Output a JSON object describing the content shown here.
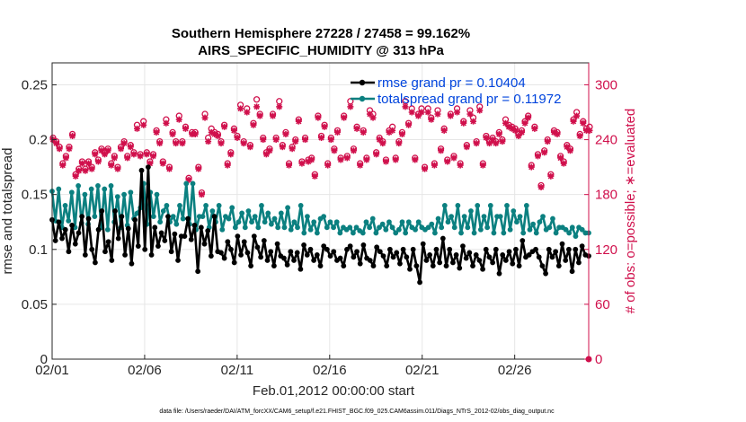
{
  "chart_data": {
    "type": "line",
    "title": "Southern Hemisphere 27228 / 27458 = 99.162%",
    "subtitle": "AIRS_SPECIFIC_HUMIDITY @ 313 hPa",
    "xlabel": "Feb.01,2012 00:00:00 start",
    "ylabel_left": "rmse and totalspread",
    "ylabel_right": "# of obs: o=possible; ∗=evaluated",
    "footnote": "data file: /Users/raeder/DAI/ATM_forcXX/CAM6_setup/f.e21.FHIST_BGC.f09_025.CAM6assim.011/Diags_NTrS_2012-02/obs_diag_output.nc",
    "x_tick_labels": [
      "02/01",
      "02/06",
      "02/11",
      "02/16",
      "02/21",
      "02/26"
    ],
    "x_tick_days": [
      0,
      5,
      10,
      15,
      20,
      25
    ],
    "xlim": [
      0,
      29
    ],
    "ylim_left": [
      0,
      0.27
    ],
    "ylim_right": [
      0,
      324
    ],
    "y_left_ticks": [
      "0",
      "0.05",
      "0.1",
      "0.15",
      "0.2",
      "0.25"
    ],
    "y_left_tick_values": [
      0,
      0.05,
      0.1,
      0.15,
      0.2,
      0.25
    ],
    "y_right_ticks": [
      "0",
      "60",
      "120",
      "180",
      "240",
      "300"
    ],
    "y_right_tick_values": [
      0,
      60,
      120,
      180,
      240,
      300
    ],
    "legend": [
      "rmse grand pr = 0.10404",
      "totalspread grand pr = 0.11972"
    ],
    "colors": {
      "rmse": "#000000",
      "spread": "#0b8080",
      "obs": "#d0104c",
      "legend_text": "#0044dd"
    },
    "series": [
      {
        "name": "rmse",
        "values": [
          0.127,
          0.108,
          0.125,
          0.11,
          0.118,
          0.098,
          0.122,
          0.105,
          0.115,
          0.13,
          0.095,
          0.128,
          0.1,
          0.088,
          0.118,
          0.135,
          0.098,
          0.107,
          0.09,
          0.135,
          0.11,
          0.13,
          0.095,
          0.119,
          0.087,
          0.127,
          0.103,
          0.172,
          0.1,
          0.175,
          0.095,
          0.12,
          0.103,
          0.115,
          0.108,
          0.13,
          0.098,
          0.114,
          0.09,
          0.112,
          0.112,
          0.128,
          0.109,
          0.122,
          0.08,
          0.12,
          0.105,
          0.117,
          0.094,
          0.13,
          0.098,
          0.097,
          0.092,
          0.107,
          0.1,
          0.088,
          0.112,
          0.095,
          0.107,
          0.097,
          0.085,
          0.112,
          0.102,
          0.093,
          0.108,
          0.09,
          0.098,
          0.085,
          0.105,
          0.094,
          0.092,
          0.086,
          0.098,
          0.09,
          0.097,
          0.082,
          0.104,
          0.095,
          0.1,
          0.09,
          0.095,
          0.085,
          0.103,
          0.1,
          0.094,
          0.098,
          0.09,
          0.092,
          0.085,
          0.1,
          0.103,
          0.093,
          0.098,
          0.087,
          0.104,
          0.092,
          0.09,
          0.085,
          0.102,
          0.098,
          0.094,
          0.085,
          0.1,
          0.093,
          0.097,
          0.087,
          0.1,
          0.093,
          0.082,
          0.1,
          0.085,
          0.07,
          0.105,
          0.09,
          0.095,
          0.085,
          0.1,
          0.088,
          0.11,
          0.085,
          0.1,
          0.088,
          0.095,
          0.083,
          0.103,
          0.092,
          0.097,
          0.085,
          0.095,
          0.09,
          0.082,
          0.1,
          0.093,
          0.088,
          0.1,
          0.078,
          0.095,
          0.09,
          0.098,
          0.087,
          0.1,
          0.085,
          0.108,
          0.093,
          0.095,
          0.098,
          0.1,
          0.093,
          0.085,
          0.078,
          0.1,
          0.093,
          0.098,
          0.085,
          0.105,
          0.09,
          0.1,
          0.08,
          0.1,
          0.088,
          0.103,
          0.095,
          0.094
        ]
      },
      {
        "name": "totalspread",
        "values": [
          0.153,
          0.126,
          0.155,
          0.12,
          0.14,
          0.126,
          0.152,
          0.12,
          0.158,
          0.124,
          0.15,
          0.123,
          0.155,
          0.13,
          0.158,
          0.12,
          0.155,
          0.118,
          0.158,
          0.125,
          0.148,
          0.12,
          0.15,
          0.122,
          0.152,
          0.128,
          0.133,
          0.138,
          0.16,
          0.123,
          0.152,
          0.13,
          0.15,
          0.125,
          0.135,
          0.14,
          0.125,
          0.13,
          0.123,
          0.14,
          0.128,
          0.16,
          0.123,
          0.16,
          0.118,
          0.13,
          0.13,
          0.14,
          0.12,
          0.135,
          0.125,
          0.14,
          0.118,
          0.13,
          0.128,
          0.138,
          0.12,
          0.125,
          0.133,
          0.12,
          0.135,
          0.125,
          0.13,
          0.12,
          0.14,
          0.125,
          0.133,
          0.123,
          0.128,
          0.12,
          0.133,
          0.12,
          0.138,
          0.118,
          0.125,
          0.12,
          0.14,
          0.115,
          0.13,
          0.118,
          0.125,
          0.115,
          0.128,
          0.13,
          0.12,
          0.125,
          0.12,
          0.125,
          0.115,
          0.12,
          0.118,
          0.12,
          0.115,
          0.12,
          0.117,
          0.115,
          0.125,
          0.12,
          0.128,
          0.115,
          0.12,
          0.123,
          0.118,
          0.125,
          0.12,
          0.115,
          0.118,
          0.125,
          0.115,
          0.125,
          0.12,
          0.118,
          0.125,
          0.12,
          0.118,
          0.12,
          0.123,
          0.115,
          0.128,
          0.12,
          0.14,
          0.125,
          0.13,
          0.12,
          0.14,
          0.115,
          0.13,
          0.12,
          0.135,
          0.115,
          0.14,
          0.118,
          0.13,
          0.12,
          0.14,
          0.115,
          0.13,
          0.13,
          0.115,
          0.14,
          0.118,
          0.135,
          0.125,
          0.13,
          0.115,
          0.14,
          0.118,
          0.123,
          0.115,
          0.125,
          0.13,
          0.118,
          0.12,
          0.128,
          0.115,
          0.12,
          0.12,
          0.118,
          0.115,
          0.12,
          0.112,
          0.12,
          0.118,
          0.115,
          0.115
        ]
      },
      {
        "name": "obs_evaluated",
        "values": [
          240,
          236,
          230,
          212,
          220,
          230,
          244,
          200,
          206,
          214,
          206,
          214,
          208,
          224,
          216,
          228,
          224,
          228,
          212,
          220,
          208,
          230,
          236,
          220,
          232,
          224,
          252,
          222,
          256,
          224,
          214,
          222,
          248,
          236,
          214,
          258,
          208,
          246,
          236,
          262,
          236,
          252,
          196,
          246,
          246,
          208,
          180,
          264,
          238,
          248,
          246,
          244,
          236,
          254,
          212,
          224,
          250,
          242,
          274,
          236,
          270,
          232,
          256,
          276,
          266,
          240,
          224,
          228,
          266,
          240,
          276,
          232,
          246,
          212,
          230,
          238,
          260,
          214,
          240,
          216,
          218,
          200,
          264,
          242,
          254,
          212,
          240,
          228,
          248,
          218,
          264,
          220,
          276,
          228,
          252,
          212,
          248,
          218,
          268,
          264,
          224,
          240,
          236,
          216,
          248,
          250,
          218,
          236,
          246,
          276,
          256,
          270,
          218,
          266,
          270,
          208,
          270,
          262,
          212,
          268,
          228,
          250,
          216,
          266,
          220,
          270,
          212,
          258,
          232,
          268,
          260,
          236,
          272,
          212,
          242,
          236,
          240,
          236,
          246,
          238,
          258,
          254,
          252,
          250,
          244,
          248,
          258,
          264,
          210,
          252,
          222,
          188,
          226,
          238,
          200,
          248,
          246,
          220,
          214,
          232,
          228,
          260,
          266,
          244,
          258,
          250,
          250
        ]
      },
      {
        "name": "obs_possible",
        "values": [
          242,
          238,
          232,
          214,
          222,
          232,
          246,
          202,
          208,
          216,
          208,
          216,
          210,
          226,
          218,
          230,
          226,
          230,
          214,
          222,
          210,
          232,
          238,
          222,
          234,
          226,
          256,
          224,
          260,
          226,
          216,
          224,
          250,
          238,
          216,
          262,
          210,
          248,
          238,
          266,
          238,
          254,
          198,
          248,
          248,
          210,
          182,
          268,
          242,
          252,
          248,
          246,
          238,
          256,
          214,
          226,
          252,
          244,
          278,
          238,
          274,
          234,
          258,
          284,
          268,
          242,
          226,
          230,
          268,
          242,
          282,
          234,
          248,
          214,
          232,
          240,
          262,
          216,
          242,
          218,
          220,
          202,
          266,
          244,
          256,
          214,
          242,
          230,
          250,
          220,
          266,
          222,
          282,
          230,
          254,
          214,
          250,
          220,
          272,
          268,
          226,
          242,
          238,
          218,
          250,
          254,
          220,
          238,
          248,
          282,
          258,
          274,
          220,
          268,
          274,
          210,
          274,
          264,
          214,
          272,
          230,
          252,
          218,
          268,
          222,
          274,
          214,
          260,
          234,
          272,
          264,
          238,
          276,
          214,
          244,
          238,
          242,
          238,
          248,
          240,
          262,
          256,
          254,
          252,
          246,
          250,
          260,
          266,
          212,
          254,
          224,
          190,
          228,
          240,
          202,
          250,
          248,
          222,
          216,
          234,
          230,
          262,
          270,
          246,
          260,
          252,
          254
        ]
      }
    ]
  }
}
